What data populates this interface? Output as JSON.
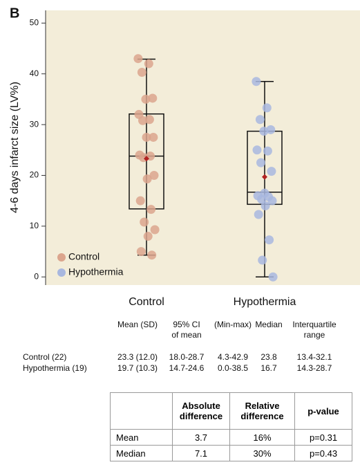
{
  "panel_label": "B",
  "chart_data": {
    "type": "box",
    "y_label": "4-6 days infarct size (LV%)",
    "ylim": [
      -1.6,
      52.5
    ],
    "yticks": [
      0,
      10,
      20,
      30,
      40,
      50
    ],
    "mean_color": "#b22222",
    "series": [
      {
        "name": "Control",
        "color": "#dba58d",
        "whisker_low": 4.3,
        "q1": 13.4,
        "median": 23.8,
        "q3": 32.1,
        "whisker_high": 42.9,
        "mean": 23.3,
        "values": [
          43,
          42,
          40.3,
          35.2,
          35,
          32,
          31,
          30.8,
          27.5,
          27.5,
          24,
          23.8,
          23.5,
          20,
          19.3,
          15,
          13.3,
          10.8,
          9.3,
          8,
          5,
          4.3
        ]
      },
      {
        "name": "Hypothermia",
        "color": "#a8b7df",
        "whisker_low": 0.0,
        "q1": 14.3,
        "median": 16.7,
        "q3": 28.7,
        "whisker_high": 38.5,
        "mean": 19.7,
        "values": [
          38.5,
          33.3,
          31,
          29,
          28.7,
          25,
          24.8,
          22.5,
          20.8,
          16.5,
          16,
          15.8,
          15.3,
          15,
          14,
          12.3,
          7.3,
          3.3,
          0.0
        ]
      }
    ]
  },
  "stats_table": {
    "header": [
      [
        "Mean (SD)"
      ],
      [
        "95% CI",
        "of mean"
      ],
      [
        "(Min-max)"
      ],
      [
        "Median"
      ],
      [
        "Interquartile",
        "range"
      ]
    ],
    "rows": [
      [
        "Control (22)",
        "23.3 (12.0)",
        "18.0-28.7",
        "4.3-42.9",
        "23.8",
        "13.4-32.1"
      ],
      [
        "Hypothermia (19)",
        "19.7 (10.3)",
        "14.7-24.6",
        "0.0-38.5",
        "16.7",
        "14.3-28.7"
      ]
    ]
  },
  "diff_table": {
    "header": [
      "",
      "Absolute difference",
      "Relative difference",
      "p-value"
    ],
    "rows": [
      [
        "Mean",
        "3.7",
        "16%",
        "p=0.31"
      ],
      [
        "Median",
        "7.1",
        "30%",
        "p=0.43"
      ]
    ]
  }
}
